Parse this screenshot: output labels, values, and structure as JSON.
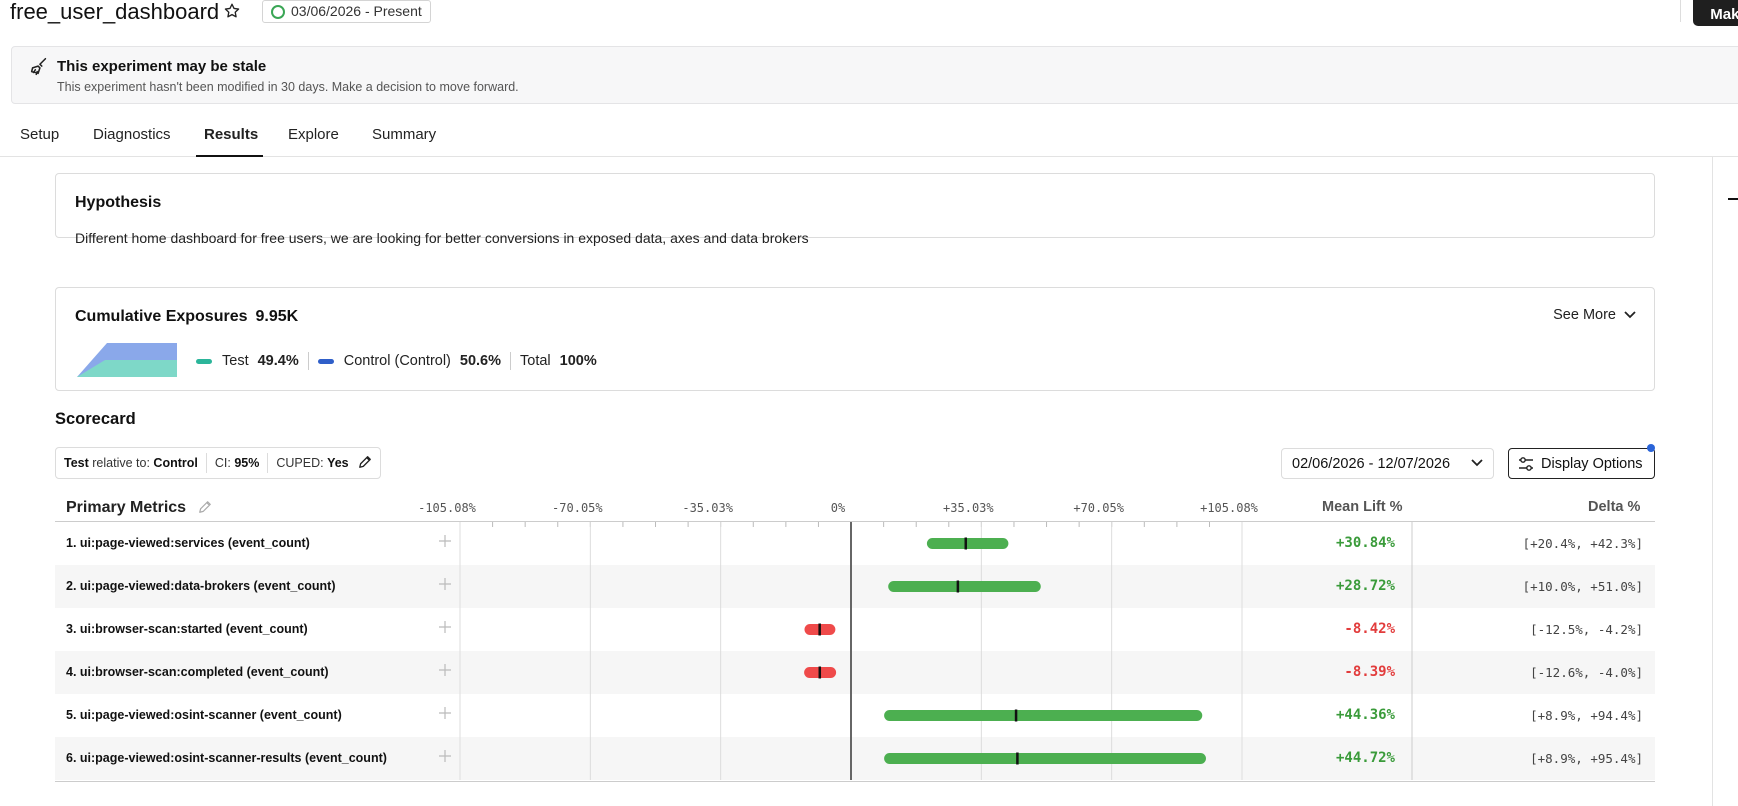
{
  "header": {
    "title": "free_user_dashboard",
    "date_badge": "03/06/2026 - Present",
    "make_button": "Make"
  },
  "stale_banner": {
    "title": "This experiment may be stale",
    "text": "This experiment hasn't been modified in 30 days. Make a decision to move forward."
  },
  "tabs": [
    {
      "label": "Setup",
      "active": false
    },
    {
      "label": "Diagnostics",
      "active": false
    },
    {
      "label": "Results",
      "active": true
    },
    {
      "label": "Explore",
      "active": false
    },
    {
      "label": "Summary",
      "active": false
    }
  ],
  "hypothesis": {
    "heading": "Hypothesis",
    "text": "Different home dashboard for free users, we are looking for better conversions in exposed data, axes and data brokers"
  },
  "exposures": {
    "heading": "Cumulative Exposures",
    "total": "9.95K",
    "see_more": "See More",
    "legend": [
      {
        "label": "Test",
        "pct": "49.4%",
        "color": "#2bb59a"
      },
      {
        "label": "Control (Control)",
        "pct": "50.6%",
        "color": "#2f5fc9"
      },
      {
        "label": "Total",
        "pct": "100%",
        "color": ""
      }
    ],
    "chart_colors": {
      "test": "#7ed8c8",
      "control": "#8aa8ea"
    }
  },
  "scorecard": {
    "title": "Scorecard",
    "config": {
      "test_label": "Test",
      "relative_label": "relative to:",
      "control_label": "Control",
      "ci_label": "CI:",
      "ci_value": "95%",
      "cuped_label": "CUPED:",
      "cuped_value": "Yes"
    },
    "date_range": "02/06/2026 - 12/07/2026",
    "display_options": "Display Options"
  },
  "metrics_table": {
    "heading": "Primary Metrics",
    "mean_lift_header": "Mean Lift %",
    "delta_header": "Delta %",
    "axis": {
      "min": -105.08,
      "max": 105.08,
      "ticks": [
        "-105.08%",
        "-70.05%",
        "-35.03%",
        "0%",
        "+35.03%",
        "+70.05%",
        "+105.08%"
      ],
      "tick_values": [
        -105.08,
        -70.05,
        -35.03,
        0,
        35.03,
        70.05,
        105.08
      ]
    },
    "colors": {
      "positive": "#4caf50",
      "negative": "#ef4a4a"
    },
    "rows": [
      {
        "name": "1. ui:page-viewed:services (event_count)",
        "lift": "+30.84%",
        "delta": "[+20.4%, +42.3%]",
        "mean": 30.84,
        "low": 20.4,
        "high": 42.3
      },
      {
        "name": "2. ui:page-viewed:data-brokers (event_count)",
        "lift": "+28.72%",
        "delta": "[+10.0%, +51.0%]",
        "mean": 28.72,
        "low": 10.0,
        "high": 51.0
      },
      {
        "name": "3. ui:browser-scan:started (event_count)",
        "lift": "-8.42%",
        "delta": "[-12.5%, -4.2%]",
        "mean": -8.42,
        "low": -12.5,
        "high": -4.2
      },
      {
        "name": "4. ui:browser-scan:completed (event_count)",
        "lift": "-8.39%",
        "delta": "[-12.6%, -4.0%]",
        "mean": -8.39,
        "low": -12.6,
        "high": -4.0
      },
      {
        "name": "5. ui:page-viewed:osint-scanner (event_count)",
        "lift": "+44.36%",
        "delta": "[+8.9%, +94.4%]",
        "mean": 44.36,
        "low": 8.9,
        "high": 94.4
      },
      {
        "name": "6. ui:page-viewed:osint-scanner-results (event_count)",
        "lift": "+44.72%",
        "delta": "[+8.9%, +95.4%]",
        "mean": 44.72,
        "low": 8.9,
        "high": 95.4
      }
    ]
  }
}
